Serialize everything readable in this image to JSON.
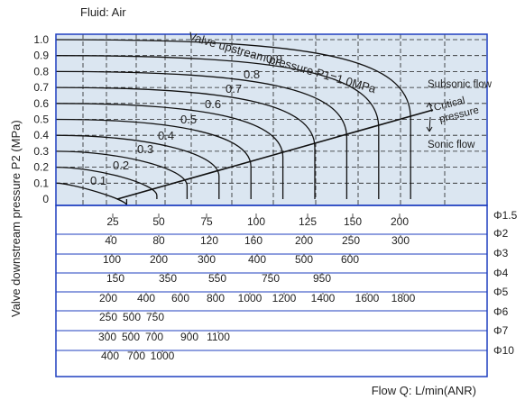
{
  "chart_data": {
    "type": "line",
    "fluid_label": "Fluid: Air",
    "ylabel": "Valve downstream pressure  P2   (MPa)",
    "xlabel": "Flow Q: L/min(ANR)",
    "ylim": [
      0,
      1.0
    ],
    "y_ticks": [
      "0",
      "0.1",
      "0.2",
      "0.3",
      "0.4",
      "0.5",
      "0.6",
      "0.7",
      "0.8",
      "0.9",
      "1.0"
    ],
    "grid": true,
    "series": [
      {
        "name": "0.1",
        "p1": 0.1,
        "max_flow": 37
      },
      {
        "name": "0.2",
        "p1": 0.2,
        "max_flow": 55
      },
      {
        "name": "0.3",
        "p1": 0.3,
        "max_flow": 73
      },
      {
        "name": "0.4",
        "p1": 0.4,
        "max_flow": 92
      },
      {
        "name": "0.5",
        "p1": 0.5,
        "max_flow": 111
      },
      {
        "name": "0.6",
        "p1": 0.6,
        "max_flow": 130
      },
      {
        "name": "0.7",
        "p1": 0.7,
        "max_flow": 149
      },
      {
        "name": "0.8",
        "p1": 0.8,
        "max_flow": 168
      },
      {
        "name": "0.9",
        "p1": 0.9,
        "max_flow": 187
      },
      {
        "name": "Valve upstream pressure P1=1.0MPa",
        "p1": 1.0,
        "max_flow": 206
      }
    ],
    "annotations": {
      "subsonic": "Subsonic flow",
      "critical_1": "Critical",
      "critical_2": "pressure",
      "sonic": "Sonic flow"
    },
    "flow_scales": [
      {
        "diameter": "Φ1.5",
        "ticks": [
          "25",
          "50",
          "75",
          "100",
          "125",
          "150",
          "200"
        ],
        "values": [
          25,
          50,
          75,
          100,
          125,
          150,
          200
        ]
      },
      {
        "diameter": "Φ2",
        "ticks": [
          "40",
          "80",
          "120",
          "160",
          "200",
          "250",
          "300"
        ],
        "values": [
          40,
          80,
          120,
          160,
          200,
          250,
          300
        ]
      },
      {
        "diameter": "Φ3",
        "ticks": [
          "100",
          "200",
          "300",
          "400",
          "500",
          "600"
        ],
        "values": [
          100,
          200,
          300,
          400,
          500,
          600
        ]
      },
      {
        "diameter": "Φ4",
        "ticks": [
          "150",
          "350",
          "550",
          "750",
          "950"
        ],
        "values": [
          150,
          350,
          550,
          750,
          950
        ]
      },
      {
        "diameter": "Φ5",
        "ticks": [
          "200",
          "400",
          "600",
          "800",
          "1000",
          "1200",
          "1400",
          "1600",
          "1800"
        ],
        "values": [
          200,
          400,
          600,
          800,
          1000,
          1200,
          1400,
          1600,
          1800
        ]
      },
      {
        "diameter": "Φ6",
        "ticks": [
          "250",
          "500",
          "750"
        ],
        "values": [
          250,
          500,
          750
        ]
      },
      {
        "diameter": "Φ7",
        "ticks": [
          "300",
          "500",
          "700",
          "900",
          "1100"
        ],
        "values": [
          300,
          500,
          700,
          900,
          1100
        ]
      },
      {
        "diameter": "Φ10",
        "ticks": [
          "400",
          "700",
          "1000"
        ],
        "values": [
          400,
          700,
          1000
        ]
      }
    ],
    "colors": {
      "background": "#dbe6f1",
      "frame": "#1f3fbf",
      "curve": "#111111",
      "grid": "#222222"
    }
  }
}
